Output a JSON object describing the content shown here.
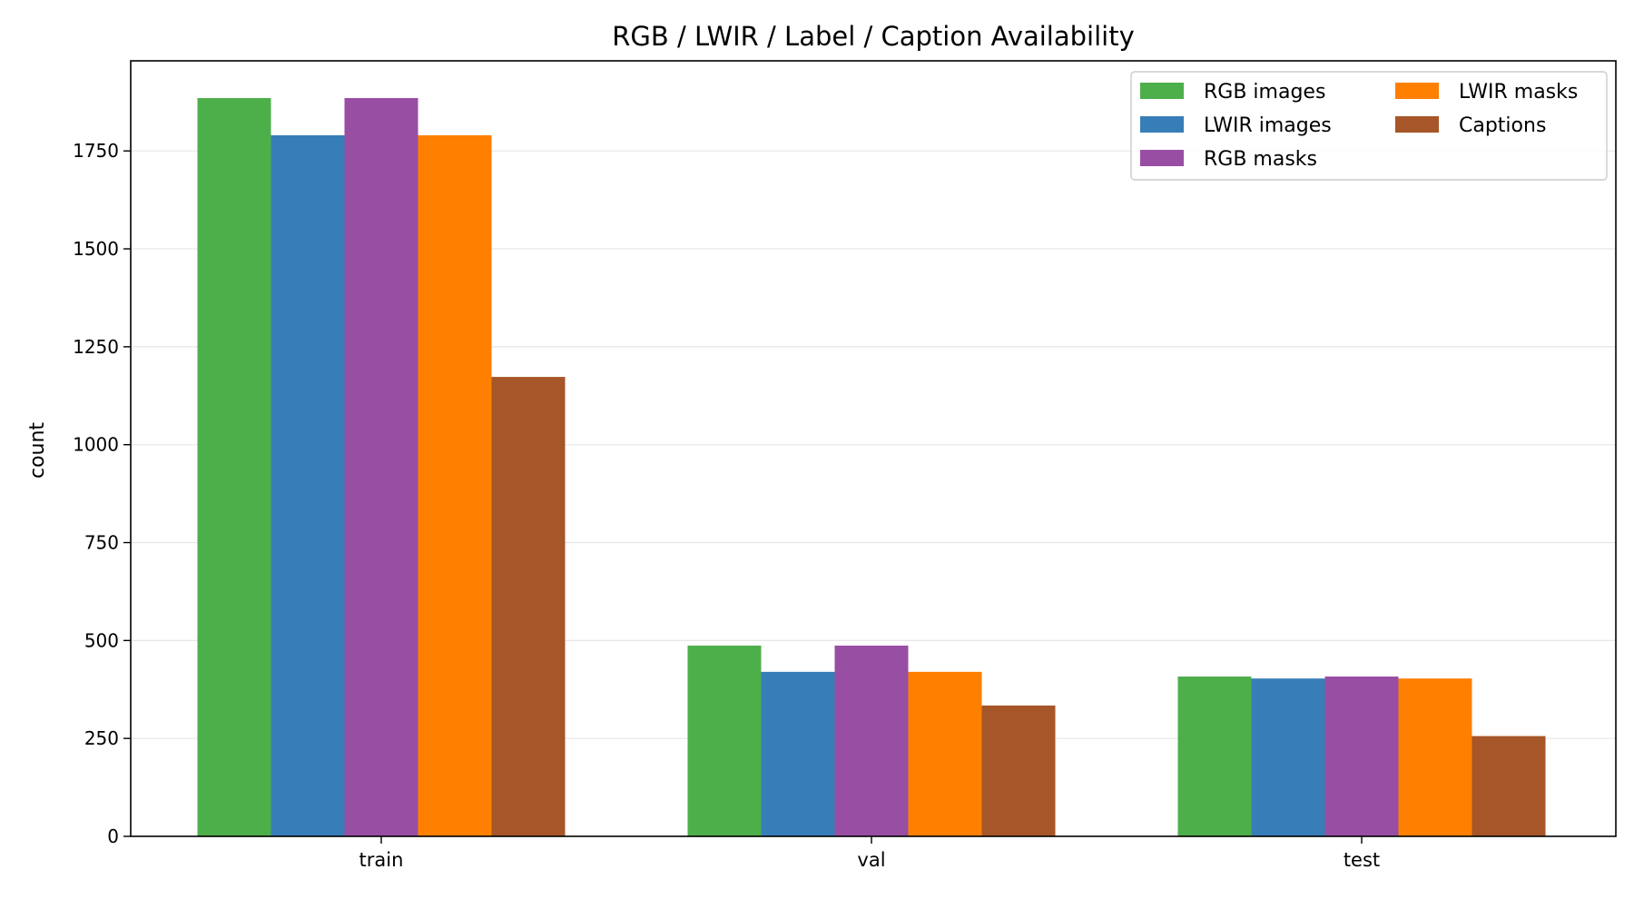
{
  "chart_data": {
    "type": "bar",
    "title": "RGB / LWIR / Label / Caption Availability",
    "xlabel": "",
    "ylabel": "count",
    "categories": [
      "train",
      "val",
      "test"
    ],
    "series": [
      {
        "name": "RGB images",
        "color": "#4daf4a",
        "values": [
          1885,
          487,
          408
        ]
      },
      {
        "name": "LWIR images",
        "color": "#377eb8",
        "values": [
          1790,
          420,
          403
        ]
      },
      {
        "name": "RGB masks",
        "color": "#984ea3",
        "values": [
          1885,
          487,
          408
        ]
      },
      {
        "name": "LWIR masks",
        "color": "#ff7f00",
        "values": [
          1790,
          420,
          403
        ]
      },
      {
        "name": "Captions",
        "color": "#a65628",
        "values": [
          1173,
          334,
          256
        ]
      }
    ],
    "ylim": [
      0,
      1980
    ],
    "yticks": [
      0,
      250,
      500,
      750,
      1000,
      1250,
      1500,
      1750
    ],
    "grid": "y",
    "legend": {
      "position": "top-right",
      "columns": 2
    }
  }
}
